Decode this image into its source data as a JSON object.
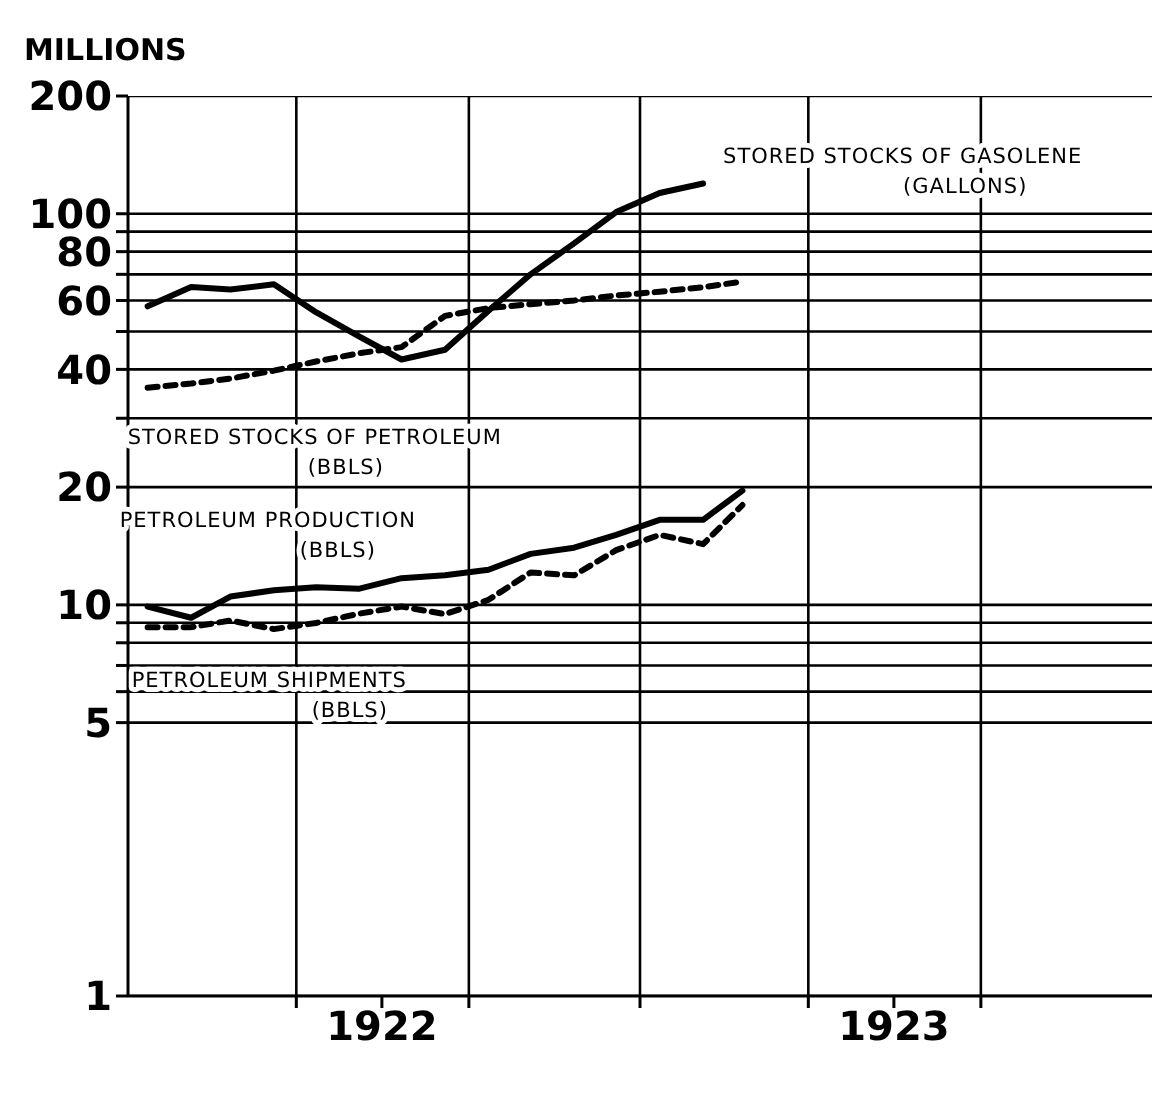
{
  "chart_data": {
    "type": "line",
    "ylabel": "MILLIONS",
    "x": [
      "1922-01-15",
      "1922-02-15",
      "1922-03-15",
      "1922-04-15",
      "1922-05-15",
      "1922-06-15",
      "1922-07-15",
      "1922-08-15",
      "1922-09-15",
      "1922-10-15",
      "1922-11-15",
      "1922-12-15",
      "1923-01-15",
      "1923-02-15",
      "1923-03-15"
    ],
    "series": [
      {
        "name": "STORED STOCKS OF GASOLENE\n(GALLONS)",
        "color": "#000000",
        "line_style": "solid",
        "values": [
          58,
          65,
          64,
          66,
          56,
          48.5,
          42.4,
          44.9,
          56.5,
          70,
          84,
          101,
          113,
          119.5,
          null
        ]
      },
      {
        "name": "STORED STOCKS OF PETROLEUM\n(BBLS)",
        "color": "#000000",
        "line_style": "dashed",
        "values": [
          35.9,
          36.8,
          37.9,
          39.7,
          41.9,
          44,
          45.6,
          54.8,
          57.4,
          58.7,
          60,
          61.8,
          63.2,
          64.9,
          67.1
        ]
      },
      {
        "name": "PETROLEUM PRODUCTION\n(BBLS)",
        "color": "#000000",
        "line_style": "solid",
        "values": [
          9.9,
          9.27,
          10.5,
          10.9,
          11.1,
          11,
          11.7,
          11.9,
          12.3,
          13.5,
          14,
          15.1,
          16.5,
          16.5,
          19.6
        ]
      },
      {
        "name": "PETROLEUM SHIPMENTS\n(BBLS)",
        "color": "#000000",
        "line_style": "dashed",
        "values": [
          8.77,
          8.77,
          9.12,
          8.67,
          8.99,
          9.5,
          9.9,
          9.47,
          10.3,
          12.1,
          11.9,
          13.8,
          15.1,
          14.3,
          18
        ]
      }
    ],
    "xlim": [
      "1922-01-01",
      "1924-01-01"
    ],
    "xticks": [
      {
        "value": "1922-05-01",
        "label": null
      },
      {
        "value": "1922-07-01",
        "label": "1922"
      },
      {
        "value": "1922-09-01",
        "label": null
      },
      {
        "value": "1923-01-01",
        "label": null
      },
      {
        "value": "1923-05-01",
        "label": null
      },
      {
        "value": "1923-07-01",
        "label": "1923"
      },
      {
        "value": "1923-09-01",
        "label": null
      }
    ],
    "log": "y",
    "ylim": [
      1,
      200
    ],
    "yticks": [
      1,
      5,
      {
        "value": 6,
        "label": null
      },
      {
        "value": 7,
        "label": null
      },
      {
        "value": 8,
        "label": null
      },
      {
        "value": 9,
        "label": null
      },
      10,
      20,
      {
        "value": 30,
        "label": null
      },
      40,
      {
        "value": 50,
        "label": null
      },
      60,
      {
        "value": 70,
        "label": null
      },
      80,
      {
        "value": 90,
        "label": null
      },
      100,
      200
    ],
    "grid": true,
    "marker": "none"
  }
}
